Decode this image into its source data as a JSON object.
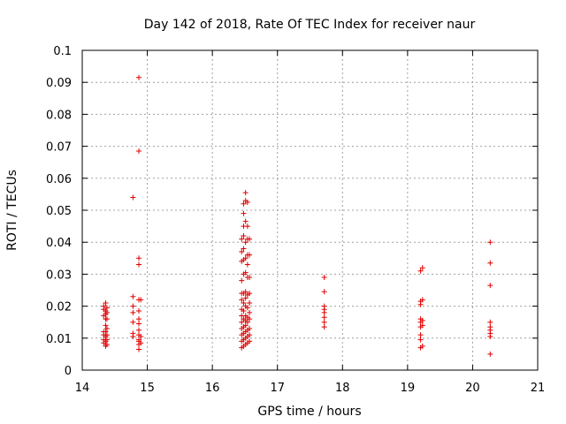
{
  "chart_data": {
    "type": "scatter",
    "title": "Day 142 of 2018, Rate Of TEC Index for receiver naur",
    "xlabel": "GPS time / hours",
    "ylabel": "ROTI / TECUs",
    "xlim": [
      14,
      21
    ],
    "ylim": [
      0,
      0.1
    ],
    "xticks": [
      "14",
      "15",
      "16",
      "17",
      "18",
      "19",
      "20",
      "21"
    ],
    "yticks": [
      "0",
      "0.01",
      "0.02",
      "0.03",
      "0.04",
      "0.05",
      "0.06",
      "0.07",
      "0.08",
      "0.09",
      "0.1"
    ],
    "grid": true,
    "marker": "+",
    "color": "#e00000",
    "series": [
      {
        "points": [
          [
            14.33,
            0.0085
          ],
          [
            14.33,
            0.0095
          ],
          [
            14.33,
            0.011
          ],
          [
            14.33,
            0.012
          ],
          [
            14.33,
            0.017
          ],
          [
            14.33,
            0.019
          ],
          [
            14.33,
            0.02
          ],
          [
            14.36,
            0.0075
          ],
          [
            14.36,
            0.009
          ],
          [
            14.36,
            0.0105
          ],
          [
            14.36,
            0.012
          ],
          [
            14.36,
            0.014
          ],
          [
            14.36,
            0.016
          ],
          [
            14.36,
            0.0175
          ],
          [
            14.36,
            0.0185
          ],
          [
            14.36,
            0.021
          ],
          [
            14.38,
            0.008
          ],
          [
            14.38,
            0.0095
          ],
          [
            14.38,
            0.011
          ],
          [
            14.38,
            0.013
          ],
          [
            14.38,
            0.016
          ],
          [
            14.38,
            0.018
          ],
          [
            14.38,
            0.0195
          ],
          [
            14.78,
            0.0105
          ],
          [
            14.78,
            0.0115
          ],
          [
            14.78,
            0.015
          ],
          [
            14.78,
            0.018
          ],
          [
            14.78,
            0.02
          ],
          [
            14.78,
            0.023
          ],
          [
            14.78,
            0.054
          ],
          [
            14.87,
            0.0065
          ],
          [
            14.87,
            0.008
          ],
          [
            14.87,
            0.009
          ],
          [
            14.87,
            0.0095
          ],
          [
            14.87,
            0.011
          ],
          [
            14.87,
            0.0125
          ],
          [
            14.87,
            0.0145
          ],
          [
            14.87,
            0.016
          ],
          [
            14.87,
            0.0185
          ],
          [
            14.87,
            0.022
          ],
          [
            14.87,
            0.033
          ],
          [
            14.87,
            0.035
          ],
          [
            14.87,
            0.0685
          ],
          [
            14.87,
            0.0915
          ],
          [
            14.9,
            0.0085
          ],
          [
            14.9,
            0.0105
          ],
          [
            14.9,
            0.022
          ],
          [
            16.45,
            0.007
          ],
          [
            16.45,
            0.009
          ],
          [
            16.45,
            0.011
          ],
          [
            16.45,
            0.013
          ],
          [
            16.45,
            0.015
          ],
          [
            16.45,
            0.017
          ],
          [
            16.45,
            0.019
          ],
          [
            16.45,
            0.022
          ],
          [
            16.45,
            0.024
          ],
          [
            16.45,
            0.028
          ],
          [
            16.45,
            0.034
          ],
          [
            16.45,
            0.037
          ],
          [
            16.45,
            0.041
          ],
          [
            16.48,
            0.0075
          ],
          [
            16.48,
            0.0095
          ],
          [
            16.48,
            0.0115
          ],
          [
            16.48,
            0.0135
          ],
          [
            16.48,
            0.016
          ],
          [
            16.48,
            0.0185
          ],
          [
            16.48,
            0.021
          ],
          [
            16.48,
            0.024
          ],
          [
            16.48,
            0.03
          ],
          [
            16.48,
            0.0345
          ],
          [
            16.48,
            0.038
          ],
          [
            16.48,
            0.042
          ],
          [
            16.48,
            0.045
          ],
          [
            16.48,
            0.049
          ],
          [
            16.48,
            0.052
          ],
          [
            16.51,
            0.008
          ],
          [
            16.51,
            0.01
          ],
          [
            16.51,
            0.012
          ],
          [
            16.51,
            0.014
          ],
          [
            16.51,
            0.0155
          ],
          [
            16.51,
            0.017
          ],
          [
            16.51,
            0.02
          ],
          [
            16.51,
            0.0225
          ],
          [
            16.51,
            0.0245
          ],
          [
            16.51,
            0.0305
          ],
          [
            16.51,
            0.035
          ],
          [
            16.51,
            0.04
          ],
          [
            16.51,
            0.0465
          ],
          [
            16.51,
            0.053
          ],
          [
            16.51,
            0.0555
          ],
          [
            16.54,
            0.0085
          ],
          [
            16.54,
            0.0105
          ],
          [
            16.54,
            0.0125
          ],
          [
            16.54,
            0.015
          ],
          [
            16.54,
            0.0165
          ],
          [
            16.54,
            0.0195
          ],
          [
            16.54,
            0.0235
          ],
          [
            16.54,
            0.029
          ],
          [
            16.54,
            0.033
          ],
          [
            16.54,
            0.036
          ],
          [
            16.54,
            0.041
          ],
          [
            16.54,
            0.045
          ],
          [
            16.54,
            0.0525
          ],
          [
            16.57,
            0.009
          ],
          [
            16.57,
            0.011
          ],
          [
            16.57,
            0.013
          ],
          [
            16.57,
            0.016
          ],
          [
            16.57,
            0.018
          ],
          [
            16.57,
            0.021
          ],
          [
            16.57,
            0.024
          ],
          [
            16.57,
            0.029
          ],
          [
            16.57,
            0.036
          ],
          [
            16.57,
            0.041
          ],
          [
            17.72,
            0.0135
          ],
          [
            17.72,
            0.015
          ],
          [
            17.72,
            0.0165
          ],
          [
            17.72,
            0.018
          ],
          [
            17.72,
            0.019
          ],
          [
            17.72,
            0.02
          ],
          [
            17.72,
            0.0245
          ],
          [
            17.72,
            0.029
          ],
          [
            19.2,
            0.007
          ],
          [
            19.2,
            0.0095
          ],
          [
            19.2,
            0.011
          ],
          [
            19.2,
            0.0135
          ],
          [
            19.2,
            0.015
          ],
          [
            19.2,
            0.016
          ],
          [
            19.2,
            0.0205
          ],
          [
            19.2,
            0.0215
          ],
          [
            19.2,
            0.031
          ],
          [
            19.23,
            0.0075
          ],
          [
            19.23,
            0.014
          ],
          [
            19.23,
            0.0155
          ],
          [
            19.23,
            0.022
          ],
          [
            19.23,
            0.032
          ],
          [
            20.27,
            0.005
          ],
          [
            20.27,
            0.0105
          ],
          [
            20.27,
            0.0115
          ],
          [
            20.27,
            0.0125
          ],
          [
            20.27,
            0.0135
          ],
          [
            20.27,
            0.015
          ],
          [
            20.27,
            0.0265
          ],
          [
            20.27,
            0.0335
          ],
          [
            20.27,
            0.04
          ]
        ]
      }
    ]
  }
}
